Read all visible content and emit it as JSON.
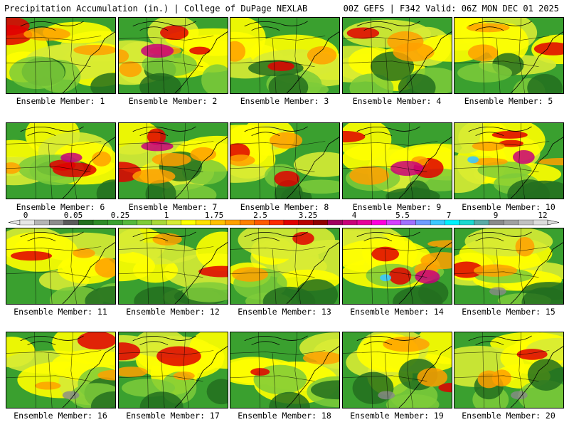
{
  "header": {
    "title_left": "Precipitation Accumulation (in.) | College of DuPage NEXLAB",
    "title_right": "00Z GEFS | F342 Valid: 06Z MON DEC 01 2025"
  },
  "caption_prefix": "Ensemble Member: ",
  "members": [
    {
      "id": 1,
      "label": "Ensemble Member: 1",
      "intensity": 0.62
    },
    {
      "id": 2,
      "label": "Ensemble Member: 2",
      "intensity": 0.78
    },
    {
      "id": 3,
      "label": "Ensemble Member: 3",
      "intensity": 0.42
    },
    {
      "id": 4,
      "label": "Ensemble Member: 4",
      "intensity": 0.55
    },
    {
      "id": 5,
      "label": "Ensemble Member: 5",
      "intensity": 0.58
    },
    {
      "id": 6,
      "label": "Ensemble Member: 6",
      "intensity": 0.74
    },
    {
      "id": 7,
      "label": "Ensemble Member: 7",
      "intensity": 0.8
    },
    {
      "id": 8,
      "label": "Ensemble Member: 8",
      "intensity": 0.6
    },
    {
      "id": 9,
      "label": "Ensemble Member: 9",
      "intensity": 0.72
    },
    {
      "id": 10,
      "label": "Ensemble Member: 10",
      "intensity": 0.82
    },
    {
      "id": 11,
      "label": "Ensemble Member: 11",
      "intensity": 0.55
    },
    {
      "id": 12,
      "label": "Ensemble Member: 12",
      "intensity": 0.4
    },
    {
      "id": 13,
      "label": "Ensemble Member: 13",
      "intensity": 0.38
    },
    {
      "id": 14,
      "label": "Ensemble Member: 14",
      "intensity": 0.85
    },
    {
      "id": 15,
      "label": "Ensemble Member: 15",
      "intensity": 0.45
    },
    {
      "id": 16,
      "label": "Ensemble Member: 16",
      "intensity": 0.55
    },
    {
      "id": 17,
      "label": "Ensemble Member: 17",
      "intensity": 0.62
    },
    {
      "id": 18,
      "label": "Ensemble Member: 18",
      "intensity": 0.4
    },
    {
      "id": 19,
      "label": "Ensemble Member: 19",
      "intensity": 0.5
    },
    {
      "id": 20,
      "label": "Ensemble Member: 20",
      "intensity": 0.48
    }
  ],
  "colorbar": {
    "labels": [
      "0",
      "0.05",
      "0.25",
      "1",
      "1.75",
      "2.5",
      "3.25",
      "4",
      "5.5",
      "7",
      "9",
      "12"
    ],
    "colors": [
      "#e6e6e6",
      "#b4b4b4",
      "#8c8c8c",
      "#5a5a5a",
      "#236f1e",
      "#2e8b27",
      "#3aa02f",
      "#56b83c",
      "#7ecb3a",
      "#a8d838",
      "#d7eb35",
      "#ffff00",
      "#ffe000",
      "#ffc000",
      "#ffa000",
      "#ff8000",
      "#ff5a00",
      "#ff2a00",
      "#e00000",
      "#b80000",
      "#900000",
      "#a00060",
      "#c8007a",
      "#e6009a",
      "#ff00dc",
      "#d440ff",
      "#a070ff",
      "#6f9cff",
      "#3cc8ff",
      "#00f0ff",
      "#1bd8cf",
      "#5aaaa6",
      "#8a8a8a",
      "#a0a0a0",
      "#c0c0c0",
      "#dcdcdc"
    ]
  },
  "colors": {
    "light": "#d7eb35",
    "mid_light": "#7ecb3a",
    "mid": "#3aa02f",
    "dark": "#236f1e",
    "yellow": "#ffff00",
    "orange": "#ffa000",
    "red": "#e00000",
    "darkred": "#900000",
    "magenta": "#c8007a",
    "pink": "#ff00dc",
    "cyan": "#3cc8ff",
    "gray": "#8a8a8a"
  }
}
